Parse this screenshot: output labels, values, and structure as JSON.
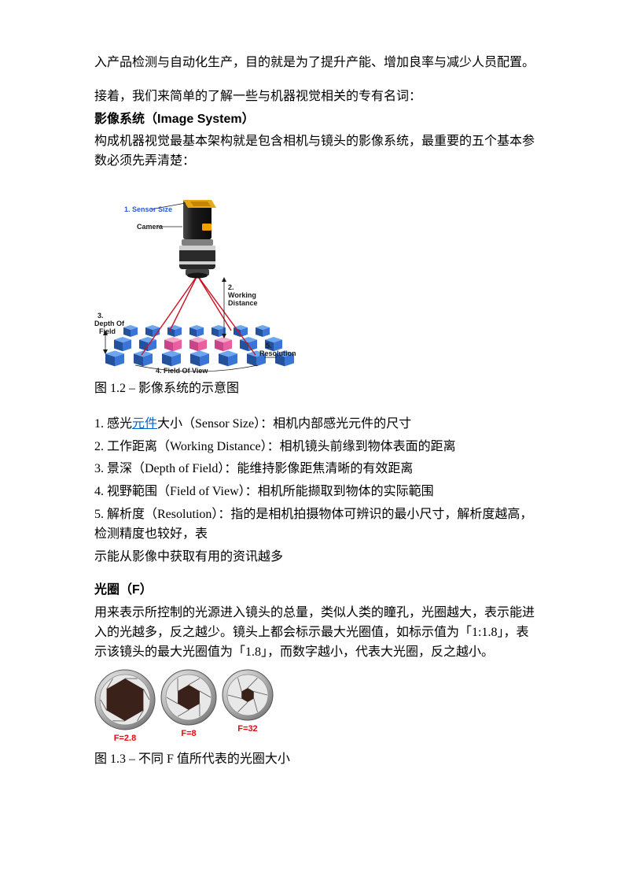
{
  "colors": {
    "text": "#000000",
    "link": "#0066cc",
    "aperture_label": "#e30c0c",
    "cube_blue_light": "#6ca5f0",
    "cube_blue_mid": "#3a74d6",
    "cube_blue_dark": "#23519b",
    "cube_pink_light": "#f4a9c9",
    "cube_pink_mid": "#e860a0",
    "cube_pink_dark": "#c94488",
    "wedge_line": "#cc1122",
    "camera_body": "#262626",
    "camera_face": "#e6a818",
    "camera_badge": "#f0a000",
    "lens_metal_light": "#dedede",
    "lens_metal_dark": "#5a5a5a",
    "ring_light": "#f0f0f0",
    "ring_mid": "#bfbfbf",
    "ring_dark": "#7a7a7a",
    "diaphragm_fill": "#3a211a"
  },
  "intro_para": "入产品检测与自动化生产，目的就是为了提升产能、增加良率与减少人员配置。",
  "lead_in": "接着，我们来简单的了解一些与机器视觉相关的专有名词：",
  "section1": {
    "heading_cn": "影像系统",
    "heading_en": "（Image System）",
    "body": "构成机器视觉最基本架构就是包含相机与镜头的影像系统，最重要的五个基本参数必须先弄清楚："
  },
  "fig12": {
    "caption": "图 1.2 – 影像系统的示意图",
    "labels": {
      "sensor": "1. Sensor Size",
      "camera": "Camera",
      "wd": "2.\nWorking\nDistance",
      "dof": "3.\nDepth Of\nField",
      "fov": "4. Field Of View",
      "res": "5.\nResolution"
    }
  },
  "params": [
    {
      "n": "1.",
      "pre": "感光",
      "link": "元件",
      "post": "大小（Sensor Size）：相机内部感光元件的尺寸"
    },
    {
      "n": "2.",
      "text": "工作距离（Working Distance）：相机镜头前缘到物体表面的距离"
    },
    {
      "n": "3.",
      "text": "景深（Depth of Field）：能维持影像距焦清晰的有效距离"
    },
    {
      "n": "4.",
      "text": "视野範围（Field of View）：相机所能撷取到物体的实际範围"
    },
    {
      "n": "5.",
      "text": "解析度（Resolution）：指的是相机拍摄物体可辨识的最小尺寸，解析度越高，检测精度也较好，表",
      "tail": "示能从影像中获取有用的资讯越多"
    }
  ],
  "section2": {
    "heading_cn": "光圈",
    "heading_en": "（F）",
    "body": "用来表示所控制的光源进入镜头的总量，类似人类的瞳孔，光圈越大，表示能进入的光越多，反之越少。镜头上都会标示最大光圈值，如标示值为「1:1.8」，表示该镜头的最大光圈值为「1.8」，而数字越小，代表大光圈，反之越小。"
  },
  "fig13": {
    "apertures": [
      {
        "label": "F=2.8",
        "outer": 78,
        "hex_r": 27
      },
      {
        "label": "F=8",
        "outer": 72,
        "hex_r": 16
      },
      {
        "label": "F=32",
        "outer": 66,
        "hex_r": 9
      }
    ],
    "caption": "图 1.3 – 不同 F 值所代表的光圈大小"
  }
}
